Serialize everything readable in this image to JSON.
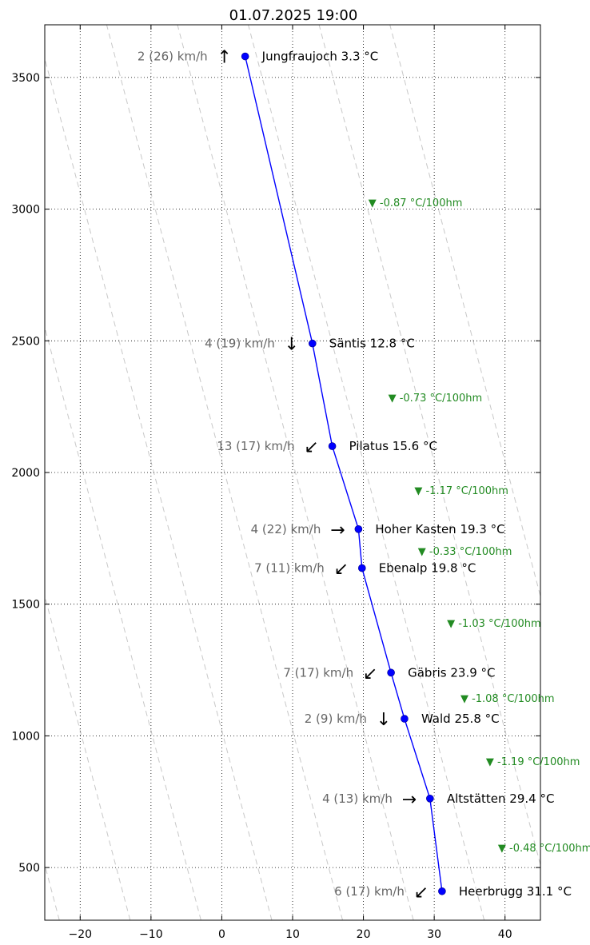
{
  "chart_data": {
    "type": "line",
    "title": "01.07.2025 19:00",
    "xlim": [
      -25,
      45
    ],
    "ylim": [
      300,
      3700
    ],
    "x_ticks": [
      -20,
      -10,
      0,
      10,
      20,
      30,
      40
    ],
    "y_ticks": [
      500,
      1000,
      1500,
      2000,
      2500,
      3000,
      3500
    ],
    "x_tick_labels": [
      "−20",
      "−10",
      "0",
      "10",
      "20",
      "30",
      "40"
    ],
    "y_tick_labels": [
      "500",
      "1000",
      "1500",
      "2000",
      "2500",
      "3000",
      "3500"
    ],
    "grid": true,
    "line_color": "#0000ff",
    "lapse_color": "#228b22",
    "wind_color": "#666666",
    "dry_adiabat_offsets": [
      -30,
      -20,
      -10,
      0,
      10,
      20,
      30,
      40,
      50,
      60
    ],
    "dry_adiabat_slope_per_100m": -0.98,
    "stations": [
      {
        "name": "Jungfraujoch",
        "temp": 3.3,
        "alt": 3580,
        "label": "Jungfraujoch 3.3 °C",
        "wind": "2 (26) km/h",
        "arrow": "↑"
      },
      {
        "name": "Säntis",
        "temp": 12.8,
        "alt": 2490,
        "label": "Säntis 12.8 °C",
        "wind": "4 (19) km/h",
        "arrow": "↓"
      },
      {
        "name": "Pilatus",
        "temp": 15.6,
        "alt": 2100,
        "label": "Pilatus 15.6 °C",
        "wind": "13 (17) km/h",
        "arrow": "↙"
      },
      {
        "name": "Hoher Kasten",
        "temp": 19.3,
        "alt": 1785,
        "label": "Hoher Kasten 19.3 °C",
        "wind": "4 (22) km/h",
        "arrow": "→"
      },
      {
        "name": "Ebenalp",
        "temp": 19.8,
        "alt": 1637,
        "label": "Ebenalp 19.8 °C",
        "wind": "7 (11) km/h",
        "arrow": "↙"
      },
      {
        "name": "Gäbris",
        "temp": 23.9,
        "alt": 1240,
        "label": "Gäbris 23.9 °C",
        "wind": "7 (17) km/h",
        "arrow": "↙"
      },
      {
        "name": "Wald",
        "temp": 25.8,
        "alt": 1065,
        "label": "Wald 25.8 °C",
        "wind": "2 (9) km/h",
        "arrow": "↓"
      },
      {
        "name": "Altstätten",
        "temp": 29.4,
        "alt": 762,
        "label": "Altstätten 29.4 °C",
        "wind": "4 (13) km/h",
        "arrow": "→"
      },
      {
        "name": "Heerbrugg",
        "temp": 31.1,
        "alt": 410,
        "label": "Heerbrugg 31.1 °C",
        "wind": "6 (17) km/h",
        "arrow": "↙"
      }
    ],
    "lapse_rates": [
      {
        "text": "▼ -0.87 °C/100hm"
      },
      {
        "text": "▼ -0.73 °C/100hm"
      },
      {
        "text": "▼ -1.17 °C/100hm"
      },
      {
        "text": "▼ -0.33 °C/100hm"
      },
      {
        "text": "▼ -1.03 °C/100hm"
      },
      {
        "text": "▼ -1.08 °C/100hm"
      },
      {
        "text": "▼ -1.19 °C/100hm"
      },
      {
        "text": "▼ -0.48 °C/100hm"
      }
    ]
  }
}
